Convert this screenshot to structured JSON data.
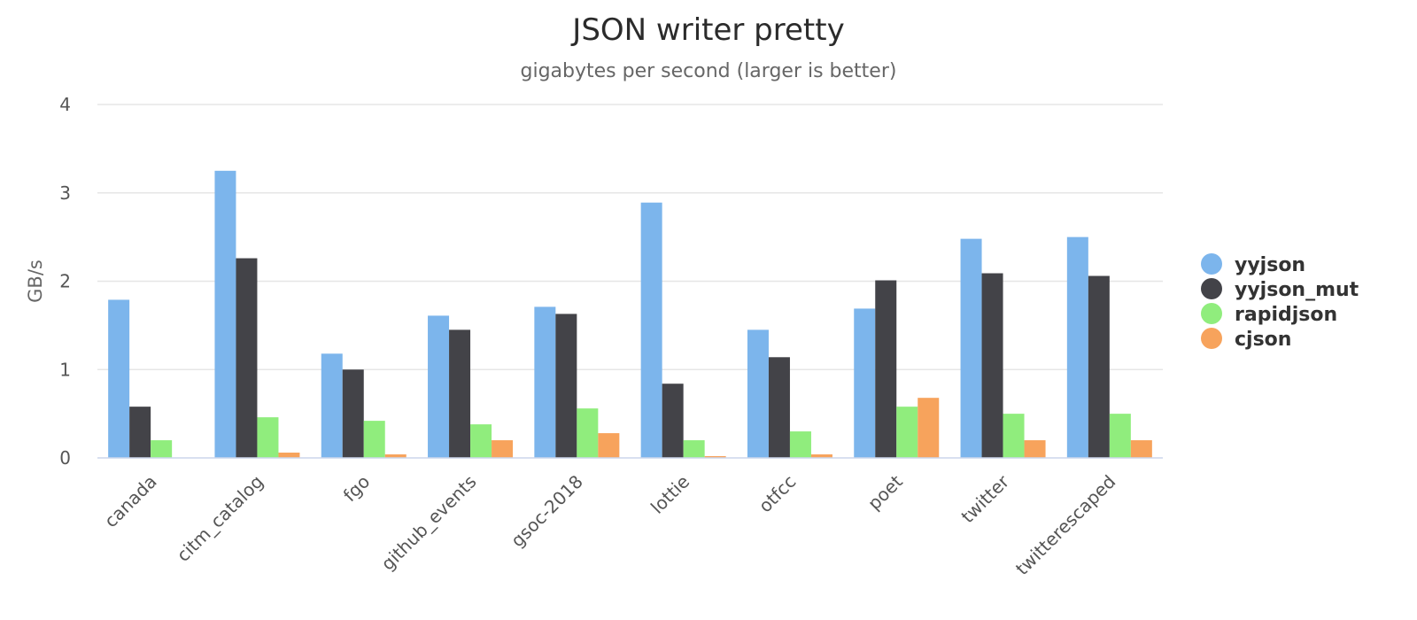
{
  "chart_data": {
    "type": "bar",
    "title": "JSON writer pretty",
    "subtitle": "gigabytes per second (larger is better)",
    "xlabel": "",
    "ylabel": "GB/s",
    "ylim": [
      0,
      4
    ],
    "yticks": [
      0,
      1,
      2,
      3,
      4
    ],
    "grid": true,
    "legend_position": "right",
    "categories": [
      "canada",
      "citm_catalog",
      "fgo",
      "github_events",
      "gsoc-2018",
      "lottie",
      "otfcc",
      "poet",
      "twitter",
      "twitterescaped"
    ],
    "series": [
      {
        "name": "yyjson",
        "color": "#7cb5ec",
        "values": [
          1.79,
          3.25,
          1.18,
          1.61,
          1.71,
          2.89,
          1.45,
          1.69,
          2.48,
          2.5
        ]
      },
      {
        "name": "yyjson_mut",
        "color": "#434348",
        "values": [
          0.58,
          2.26,
          1.0,
          1.45,
          1.63,
          0.84,
          1.14,
          2.01,
          2.09,
          2.06
        ]
      },
      {
        "name": "rapidjson",
        "color": "#90ed7d",
        "values": [
          0.2,
          0.46,
          0.42,
          0.38,
          0.56,
          0.2,
          0.3,
          0.58,
          0.5,
          0.5
        ]
      },
      {
        "name": "cjson",
        "color": "#f7a35c",
        "values": [
          0.0,
          0.06,
          0.04,
          0.2,
          0.28,
          0.02,
          0.04,
          0.68,
          0.2,
          0.2
        ]
      }
    ]
  }
}
